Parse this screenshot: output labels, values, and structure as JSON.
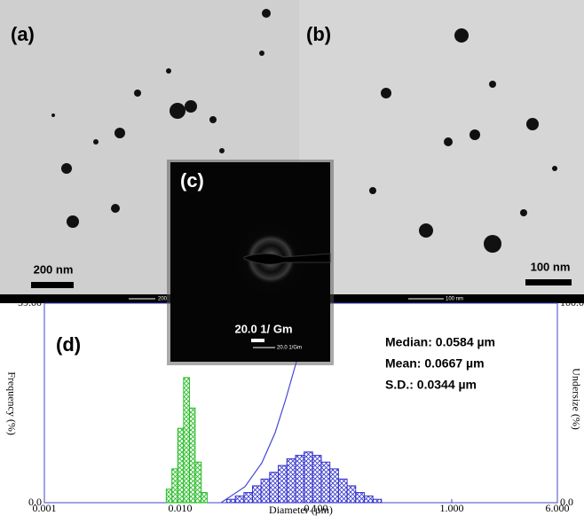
{
  "panels": {
    "a": {
      "label": "(a)",
      "scale": "200 nm",
      "bar_label": "200"
    },
    "b": {
      "label": "(b)",
      "scale": "100 nm",
      "bar_label": "100 nm"
    },
    "c": {
      "label": "(c)",
      "scale": "20.0 1/ Gm",
      "bar_label": "20.0 1/Gm"
    }
  },
  "chart_data": {
    "type": "histogram",
    "label": "(d)",
    "stats": [
      "Median: 0.0584 µm",
      "Mean: 0.0667 µm",
      "S.D.: 0.0344 µm"
    ],
    "xlabel": "Diameter (µm)",
    "ylabel": "Frequency (%)",
    "y2label": "Undersize (%)",
    "xscale": "log",
    "xlim": [
      0.001,
      6
    ],
    "xticks": [
      {
        "value": 0.001,
        "label": "0.001"
      },
      {
        "value": 0.01,
        "label": "0.010"
      },
      {
        "value": 0.1,
        "label": "0.100"
      },
      {
        "value": 1,
        "label": "1.000"
      },
      {
        "value": 6,
        "label": "6.000"
      }
    ],
    "ylim": [
      0,
      59
    ],
    "yticks": [
      {
        "value": 0,
        "label": "0.0"
      },
      {
        "value": 59,
        "label": "59.00"
      }
    ],
    "y2lim": [
      0,
      100
    ],
    "y2ticks": [
      {
        "value": 0,
        "label": "0.0"
      },
      {
        "value": 100,
        "label": "100.0"
      }
    ],
    "series": [
      {
        "color": "#22bb22",
        "bins": [
          0.0079,
          0.0087,
          0.0096,
          0.0106,
          0.0117,
          0.0129,
          0.0143,
          0.0158
        ],
        "values": [
          4,
          10,
          22,
          37,
          28,
          12,
          3
        ]
      },
      {
        "color": "#3333cc",
        "bins": [
          0.022,
          0.0255,
          0.0295,
          0.0341,
          0.0394,
          0.0456,
          0.0528,
          0.0611,
          0.0707,
          0.0818,
          0.0946,
          0.1095,
          0.1267,
          0.1466,
          0.1696,
          0.1962,
          0.227,
          0.2627,
          0.3039
        ],
        "values": [
          1,
          2,
          3,
          5,
          7,
          9,
          11,
          13,
          14,
          15,
          14,
          12,
          10,
          7,
          5,
          3,
          2,
          1
        ]
      },
      {
        "type": "line",
        "axis": "y2",
        "color": "#4444dd",
        "x": [
          0.02,
          0.03,
          0.04,
          0.05,
          0.06,
          0.07,
          0.08,
          0.09,
          0.1
        ],
        "values": [
          0,
          8,
          20,
          35,
          52,
          68,
          82,
          93,
          100
        ]
      }
    ]
  }
}
